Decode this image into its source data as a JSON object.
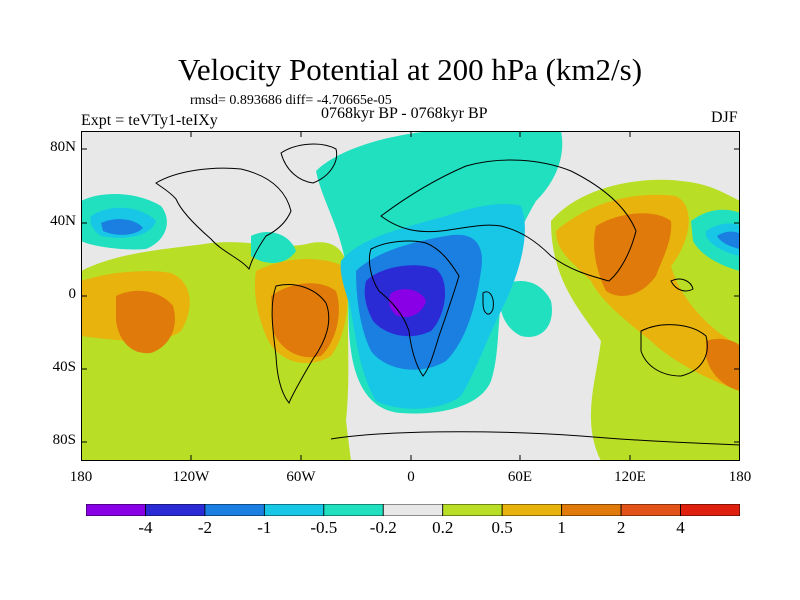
{
  "title": "Velocity Potential at 200 hPa (km2/s)",
  "stats": "rmsd= 0.893686 diff= -4.70665e-05",
  "experiment": "Expt = teVTy1-teIXy",
  "period": "0768kyr BP - 0768kyr BP",
  "season": "DJF",
  "lat_labels": [
    "80N",
    "40N",
    "0",
    "40S",
    "80S"
  ],
  "lon_labels": [
    "180",
    "120W",
    "60W",
    "0",
    "60E",
    "120E",
    "180"
  ],
  "colorbar": {
    "labels": [
      "-4",
      "-2",
      "-1",
      "-0.5",
      "-0.2",
      "0.2",
      "0.5",
      "1",
      "2",
      "4"
    ],
    "colors": [
      "#8a00e6",
      "#2b2bd6",
      "#1a7fe0",
      "#18c6e6",
      "#20e0c0",
      "#e8e8e8",
      "#b8df26",
      "#e8b30c",
      "#e07a0a",
      "#e2531a",
      "#e0200e"
    ]
  }
}
